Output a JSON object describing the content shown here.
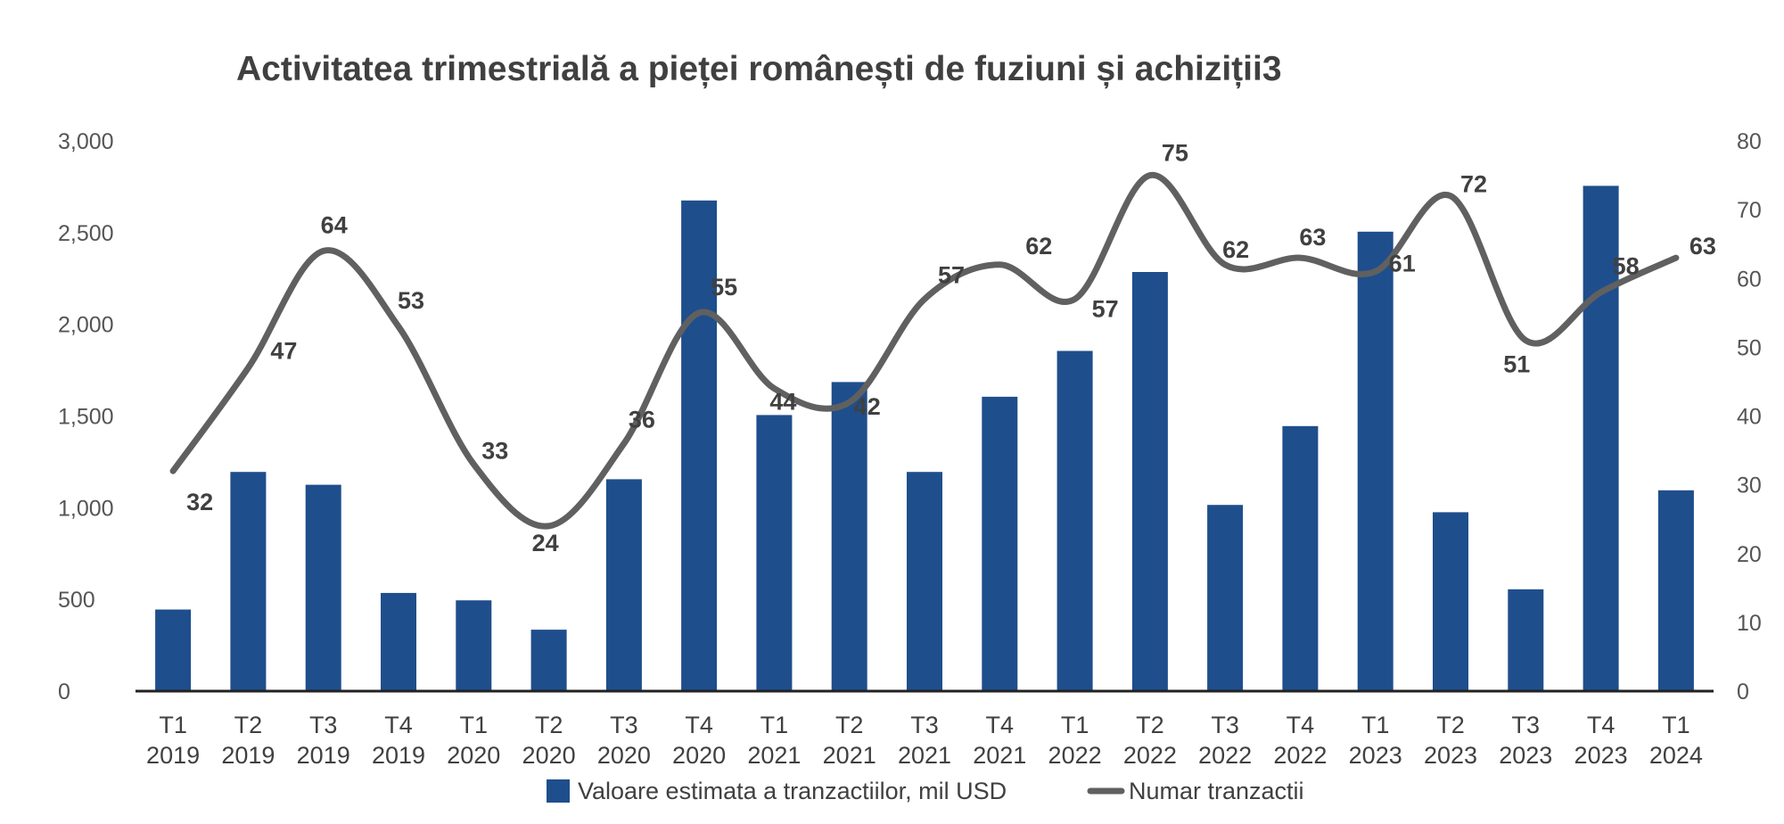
{
  "chart_data": {
    "type": "bar",
    "title": "Activitatea trimestrială a pieței românești de fuziuni și achiziții3",
    "categories": [
      [
        "T1",
        "2019"
      ],
      [
        "T2",
        "2019"
      ],
      [
        "T3",
        "2019"
      ],
      [
        "T4",
        "2019"
      ],
      [
        "T1",
        "2020"
      ],
      [
        "T2",
        "2020"
      ],
      [
        "T3",
        "2020"
      ],
      [
        "T4",
        "2020"
      ],
      [
        "T1",
        "2021"
      ],
      [
        "T2",
        "2021"
      ],
      [
        "T3",
        "2021"
      ],
      [
        "T4",
        "2021"
      ],
      [
        "T1",
        "2022"
      ],
      [
        "T2",
        "2022"
      ],
      [
        "T3",
        "2022"
      ],
      [
        "T4",
        "2022"
      ],
      [
        "T1",
        "2023"
      ],
      [
        "T2",
        "2023"
      ],
      [
        "T3",
        "2023"
      ],
      [
        "T4",
        "2023"
      ],
      [
        "T1",
        "2024"
      ]
    ],
    "series": [
      {
        "name": "Valoare estimata a tranzactiilor, mil USD",
        "type": "bar",
        "axis": "left",
        "color": "#1f4e8c",
        "values": [
          450,
          1200,
          1130,
          540,
          500,
          340,
          1160,
          2680,
          1510,
          1690,
          1200,
          1610,
          1860,
          2290,
          1020,
          1450,
          2510,
          980,
          560,
          2760,
          1100
        ]
      },
      {
        "name": "Numar tranzactii",
        "type": "line",
        "axis": "right",
        "color": "#606060",
        "values": [
          32,
          47,
          64,
          53,
          33,
          24,
          36,
          55,
          44,
          42,
          57,
          62,
          57,
          75,
          62,
          63,
          61,
          72,
          51,
          58,
          63
        ]
      }
    ],
    "y_left": {
      "min": 0,
      "max": 3000,
      "ticks": [
        0,
        500,
        1000,
        1500,
        2000,
        2500,
        3000
      ],
      "tick_labels": [
        "0",
        "500",
        "1,000",
        "1,500",
        "2,000",
        "2,500",
        "3,000"
      ]
    },
    "y_right": {
      "min": 0,
      "max": 80,
      "ticks": [
        0,
        10,
        20,
        30,
        40,
        50,
        60,
        70,
        80
      ],
      "tick_labels": [
        "0",
        "10",
        "20",
        "30",
        "40",
        "50",
        "60",
        "70",
        "80"
      ]
    },
    "grid": false,
    "legend_position": "bottom"
  }
}
